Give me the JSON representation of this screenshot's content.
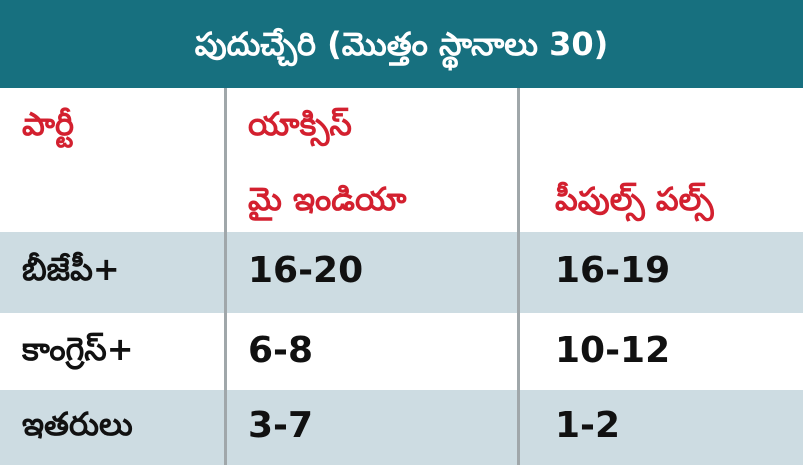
{
  "title": "పుదుచ్చేరి (మొత్తం స్థానాలు 30)",
  "table": {
    "header": {
      "party": "పార్టీ",
      "axis": [
        "యాక్సిస్",
        "మై ఇండియా"
      ],
      "pulse": "పీపుల్స్ పల్స్"
    },
    "rows": [
      [
        "బీజేపీ+",
        "16-20",
        "16-19"
      ],
      [
        "కాంగ్రెస్+",
        "6-8",
        "10-12"
      ],
      [
        "ఇతరులు",
        "3-7",
        "1-2"
      ]
    ]
  }
}
